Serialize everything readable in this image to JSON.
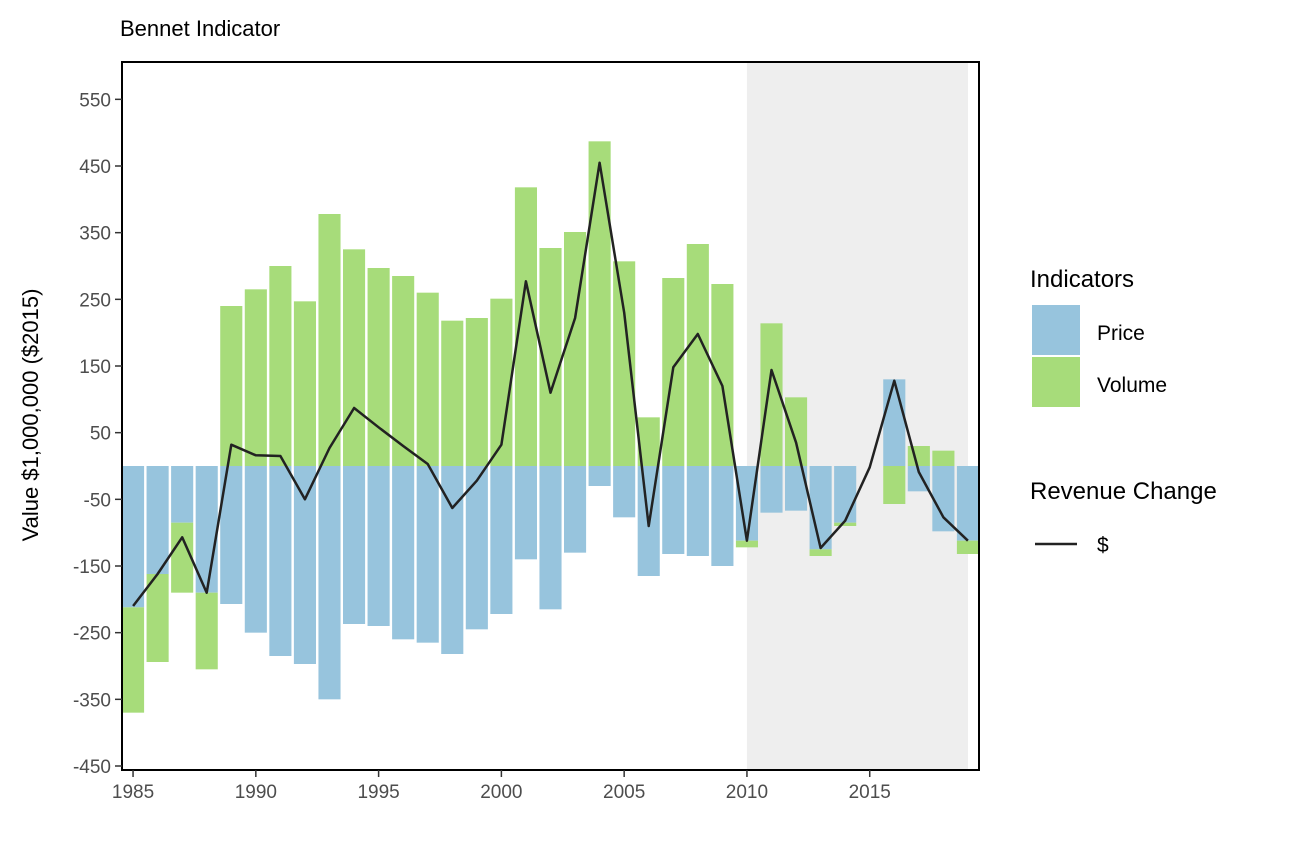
{
  "chart_data": {
    "type": "bar",
    "title": "Bennet Indicator",
    "xlabel": "",
    "ylabel": "Value $1,000,000 ($2015)",
    "xlim": [
      1984.55,
      2019.45
    ],
    "ylim": [
      -456,
      606
    ],
    "x_ticks": [
      1985,
      1990,
      1995,
      2000,
      2005,
      2010,
      2015
    ],
    "y_ticks": [
      550,
      450,
      350,
      250,
      150,
      50,
      -50,
      -150,
      -250,
      -350,
      -450
    ],
    "shaded_region": {
      "from": 2010,
      "to": 2019,
      "color": "#eeeeee"
    },
    "grid": false,
    "stacked": true,
    "legend_position": "right",
    "x": [
      1985,
      1986,
      1987,
      1988,
      1989,
      1990,
      1991,
      1992,
      1993,
      1994,
      1995,
      1996,
      1997,
      1998,
      1999,
      2000,
      2001,
      2002,
      2003,
      2004,
      2005,
      2006,
      2007,
      2008,
      2009,
      2010,
      2011,
      2012,
      2013,
      2014,
      2015,
      2016,
      2017,
      2018,
      2019
    ],
    "series": [
      {
        "name": "Price",
        "color": "#97c4dd",
        "values": [
          -212,
          -162,
          -85,
          -190,
          -207,
          -250,
          -285,
          -297,
          -350,
          -237,
          -240,
          -260,
          -265,
          -282,
          -245,
          -222,
          -140,
          -215,
          -130,
          -30,
          -77,
          -165,
          -132,
          -135,
          -150,
          -112,
          -70,
          -67,
          -125,
          -85,
          0,
          130,
          -38,
          -98,
          -112
        ]
      },
      {
        "name": "Volume",
        "color": "#a7dc7a",
        "values": [
          -158,
          -132,
          -105,
          -115,
          240,
          265,
          300,
          247,
          378,
          325,
          297,
          285,
          260,
          218,
          222,
          251,
          418,
          327,
          351,
          487,
          307,
          73,
          282,
          333,
          273,
          -10,
          214,
          103,
          -10,
          -5,
          0,
          -57,
          30,
          23,
          -20
        ]
      }
    ],
    "line": {
      "name": "$",
      "color": "#222222",
      "values": [
        -210,
        -162,
        -107,
        -190,
        32,
        16,
        15,
        -50,
        27,
        87,
        58,
        30,
        3,
        -63,
        -22,
        32,
        277,
        110,
        222,
        455,
        230,
        -90,
        148,
        198,
        120,
        -112,
        144,
        35,
        -123,
        -82,
        -2,
        128,
        -9,
        -77,
        -112
      ]
    },
    "legend": {
      "indicators_title": "Indicators",
      "indicators": [
        {
          "label": "Price",
          "color": "#97c4dd"
        },
        {
          "label": "Volume",
          "color": "#a7dc7a"
        }
      ],
      "line_title": "Revenue Change",
      "line_label": "$"
    }
  }
}
